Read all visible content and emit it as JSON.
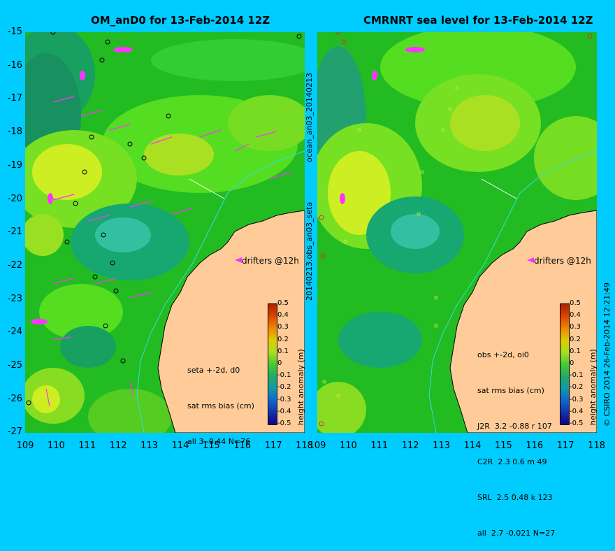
{
  "panels": [
    {
      "id": "left",
      "title": "OM_anD0 for 13-Feb-2014 12Z",
      "side_label": "ocean_an03_20140213",
      "drifter_label": "drifters @12h",
      "stats": [
        "seta +-2d, d0",
        "sat rms bias (cm)",
        "all 3 -0.44 N=76"
      ]
    },
    {
      "id": "right",
      "title": "CMRNRT sea level  for 13-Feb-2014 12Z",
      "side_label": "20140213.obs_an03_seta",
      "drifter_label": "drifters @12h",
      "stats": [
        "obs +-2d, oi0",
        "sat rms bias (cm)",
        "J2R  3.2 -0.88 r 107",
        "C2R  2.3 0.6 m 49",
        "SRL  2.5 0.48 k 123",
        "all  2.7 -0.021 N=27"
      ]
    }
  ],
  "y_axis_ticks": [
    "-15",
    "-16",
    "-17",
    "-18",
    "-19",
    "-20",
    "-21",
    "-22",
    "-23",
    "-24",
    "-25",
    "-26",
    "-27"
  ],
  "x_axis_ticks": [
    "109",
    "110",
    "111",
    "112",
    "113",
    "114",
    "115",
    "116",
    "117",
    "118"
  ],
  "colorbar": {
    "label": "height anomaly (m)",
    "ticks": [
      "0.5",
      "0.4",
      "0.3",
      "0.2",
      "0.1",
      "0",
      "-0.1",
      "-0.2",
      "-0.3",
      "-0.4",
      "-0.5"
    ]
  },
  "credit": "© CSIRO 2014   26-Feb-2014 12:21:49",
  "map_extent": {
    "lon": [
      109,
      118
    ],
    "lat": [
      -27,
      -15
    ]
  },
  "colors": {
    "background": "#00ccff",
    "ocean": "#22bb22",
    "land": "#ffcc99",
    "drifters": "#ff33ff"
  }
}
